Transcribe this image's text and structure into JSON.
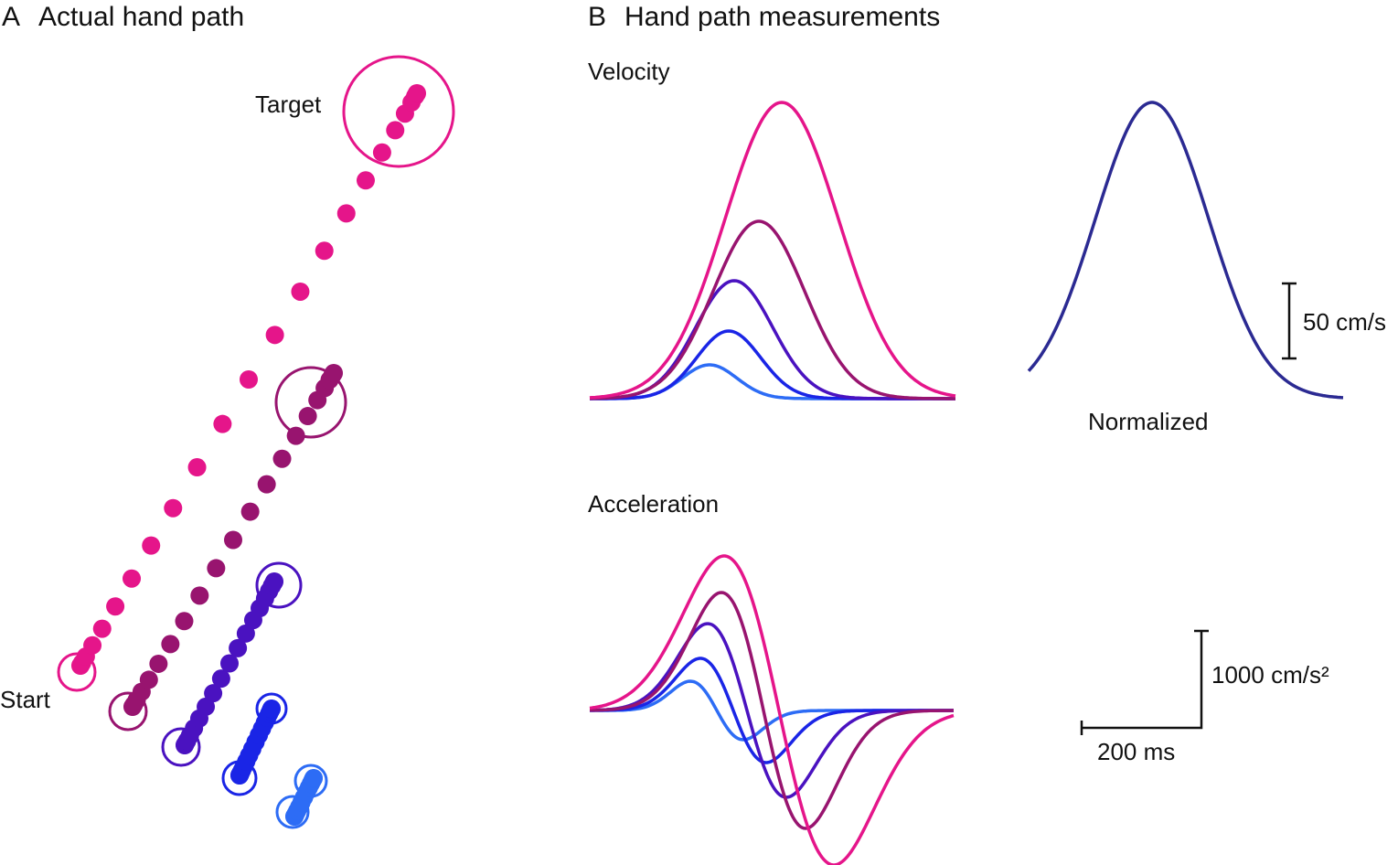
{
  "panel_a": {
    "letter": "A",
    "title": "Actual hand path",
    "target_label": "Target",
    "start_label": "Start"
  },
  "panel_b": {
    "letter": "B",
    "title": "Hand path measurements",
    "velocity_label": "Velocity",
    "normalized_label": "Normalized",
    "velocity_scale": "50 cm/s",
    "acceleration_label": "Acceleration",
    "acceleration_scale": "1000 cm/s²",
    "time_scale": "200 ms"
  }
}
